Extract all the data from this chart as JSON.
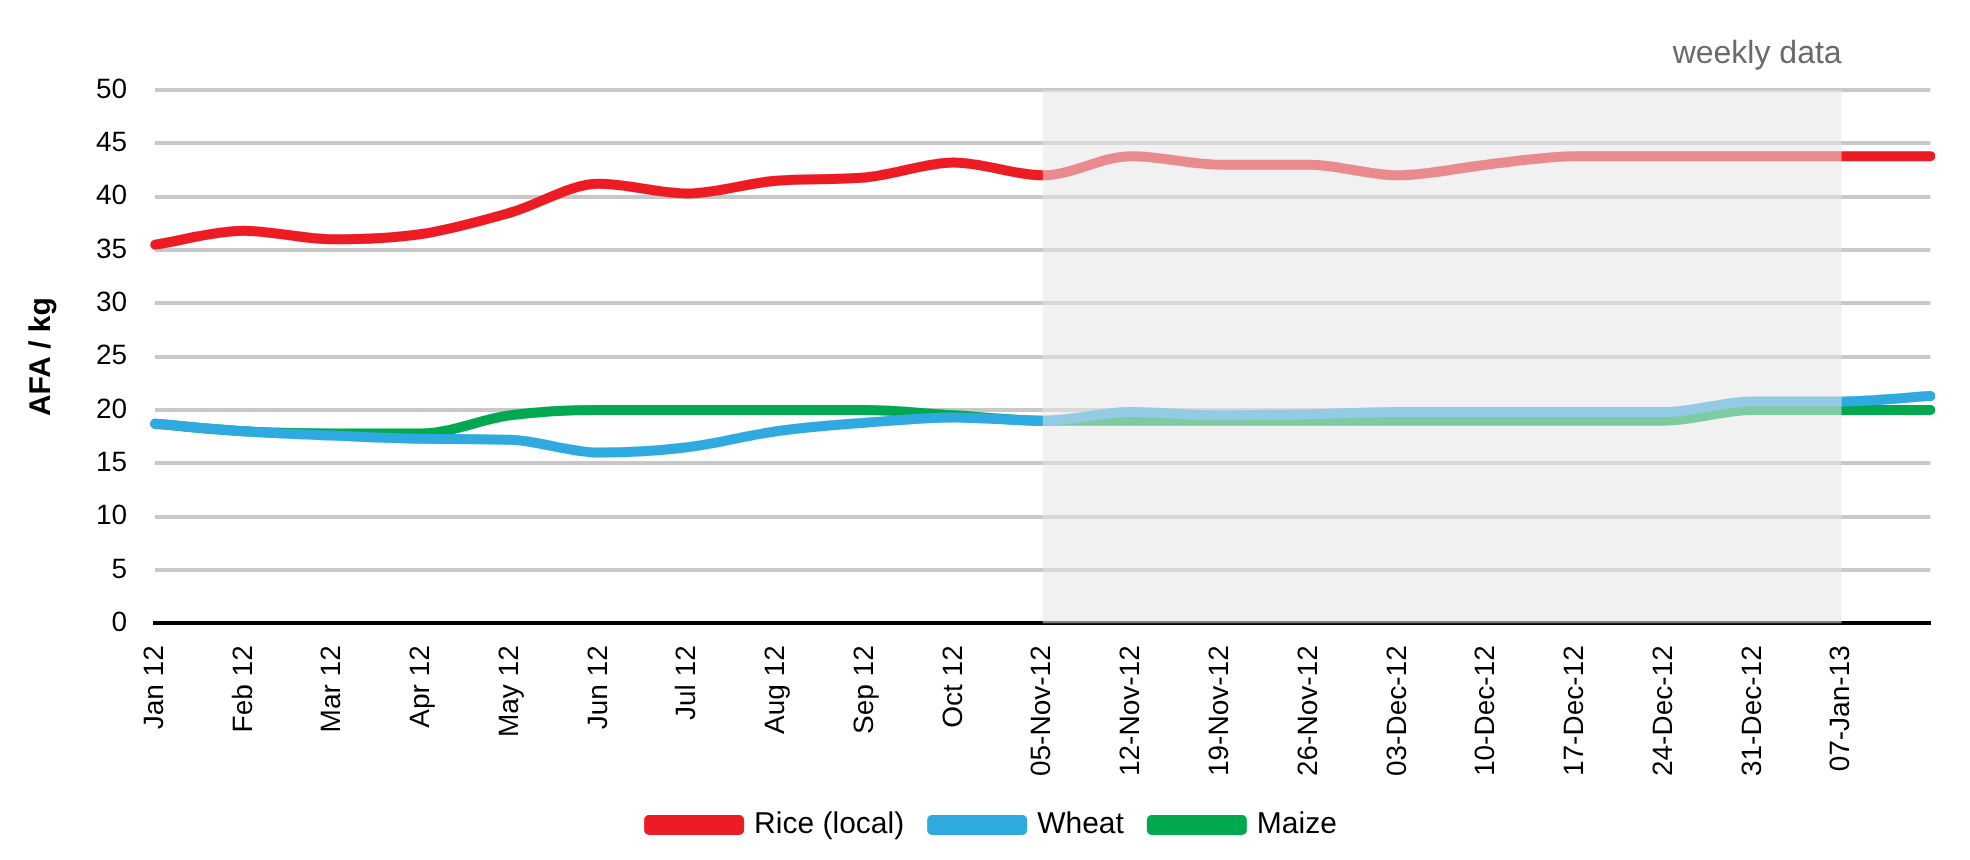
{
  "chart_data": {
    "type": "line",
    "ylabel": "AFA / kg",
    "categories": [
      "Jan 12",
      "Feb 12",
      "Mar 12",
      "Apr 12",
      "May 12",
      "Jun 12",
      "Jul 12",
      "Aug 12",
      "Sep 12",
      "Oct 12",
      "05-Nov-12",
      "12-Nov-12",
      "19-Nov-12",
      "26-Nov-12",
      "03-Dec-12",
      "10-Dec-12",
      "17-Dec-12",
      "24-Dec-12",
      "31-Dec-12",
      "07-Jan-13",
      null
    ],
    "series": [
      {
        "name": "Rice (local)",
        "color": "#ed1c24",
        "values": [
          35.5,
          36.8,
          36,
          36.5,
          38.5,
          41.2,
          40.3,
          41.5,
          41.8,
          43.2,
          42,
          43.8,
          43,
          43,
          42,
          43,
          43.8,
          43.8,
          43.8,
          43.8,
          43.8
        ]
      },
      {
        "name": "Wheat",
        "color": "#2eaae1",
        "values": [
          18.7,
          18,
          17.6,
          17.3,
          17.2,
          16,
          16.5,
          18,
          18.8,
          19.3,
          19,
          19.8,
          19.5,
          19.6,
          19.8,
          19.8,
          19.8,
          19.8,
          20.8,
          20.8,
          21.3
        ]
      },
      {
        "name": "Maize",
        "color": "#00a94f",
        "values": [
          18.7,
          18,
          17.8,
          17.8,
          19.5,
          20,
          20,
          20,
          20,
          19.5,
          19,
          19,
          19,
          19,
          19,
          19,
          19,
          19,
          20,
          20,
          20
        ]
      }
    ],
    "ylim": [
      0,
      50
    ],
    "yticks": [
      0,
      5,
      10,
      15,
      20,
      25,
      30,
      35,
      40,
      45,
      50
    ],
    "grid": "y",
    "legend": "bottom",
    "marker": "none",
    "line_style": "solid",
    "bands": [
      {
        "axis": "x",
        "from": "05-Nov-12",
        "to": "07-Jan-13",
        "label": "weekly data",
        "color": "#e6e6e6"
      }
    ]
  }
}
